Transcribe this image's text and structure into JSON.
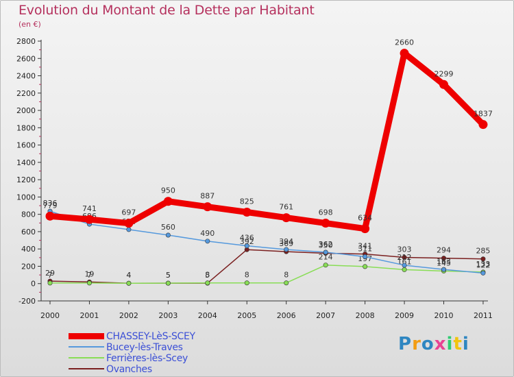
{
  "title": "Evolution du Montant de la Dette par Habitant",
  "subtitle": "(en €)",
  "logo": "Proxiti",
  "colors": {
    "title": "#b5305d",
    "axis_text": "#222222",
    "legend_text": "#3b4fd6",
    "logo": [
      "#2e86c1",
      "#f39c12",
      "#2e86c1",
      "#e84393",
      "#2ecc71",
      "#f1c40f",
      "#2e86c1"
    ]
  },
  "chart_data": {
    "type": "line",
    "title": "Evolution du Montant de la Dette par Habitant",
    "subtitle": "(en €)",
    "xlabel": "",
    "ylabel": "",
    "x": [
      "2000",
      "2001",
      "2002",
      "2003",
      "2004",
      "2005",
      "2006",
      "2007",
      "2008",
      "2009",
      "2010",
      "2011"
    ],
    "yticks": [
      -200,
      0,
      200,
      400,
      600,
      800,
      1000,
      1200,
      1400,
      1600,
      1800,
      2000,
      2200,
      2400,
      2600,
      2800
    ],
    "ylim": [
      -200,
      2800
    ],
    "grid": false,
    "legend_position": "bottom-left",
    "series": [
      {
        "name": "Ovanches",
        "color": "#7a1f1f",
        "values": [
          29,
          19,
          4,
          5,
          5,
          392,
          369,
          350,
          341,
          303,
          294,
          285
        ],
        "labels": [
          "29",
          "19",
          "4",
          "5",
          "5",
          "392",
          "369",
          "350",
          "341",
          "303",
          "294",
          "285"
        ]
      },
      {
        "name": "Ferrières-lès-Scey",
        "color": "#88dd55",
        "values": [
          7,
          7,
          4,
          5,
          8,
          8,
          8,
          214,
          197,
          161,
          145,
          133
        ],
        "labels": [
          "7",
          "7",
          "4",
          "5",
          "8",
          "8",
          "8",
          "214",
          "197",
          "161",
          "145",
          "133"
        ]
      },
      {
        "name": "Bucey-lès-Traves",
        "color": "#5599dd",
        "values": [
          836,
          686,
          624,
          560,
          490,
          436,
          394,
          362,
          311,
          212,
          163,
          122
        ],
        "labels": [
          "836",
          "686",
          "624",
          "560",
          "490",
          "436",
          "394",
          "362",
          "311",
          "212",
          "163",
          "122"
        ]
      },
      {
        "name": "CHASSEY-LèS-SCEY",
        "color": "#ee0000",
        "values": [
          779,
          741,
          697,
          950,
          887,
          825,
          761,
          698,
          634,
          2660,
          2299,
          1837
        ],
        "labels": [
          "779",
          "741",
          "697",
          "950",
          "887",
          "825",
          "761",
          "698",
          "634",
          "2660",
          "2299",
          "1837"
        ]
      }
    ]
  },
  "legend": [
    {
      "name": "CHASSEY-LèS-SCEY",
      "color": "#ee0000",
      "thickness": 9
    },
    {
      "name": "Bucey-lès-Traves",
      "color": "#5599dd",
      "thickness": 2
    },
    {
      "name": "Ferrières-lès-Scey",
      "color": "#88dd55",
      "thickness": 2
    },
    {
      "name": "Ovanches",
      "color": "#7a1f1f",
      "thickness": 2
    }
  ]
}
